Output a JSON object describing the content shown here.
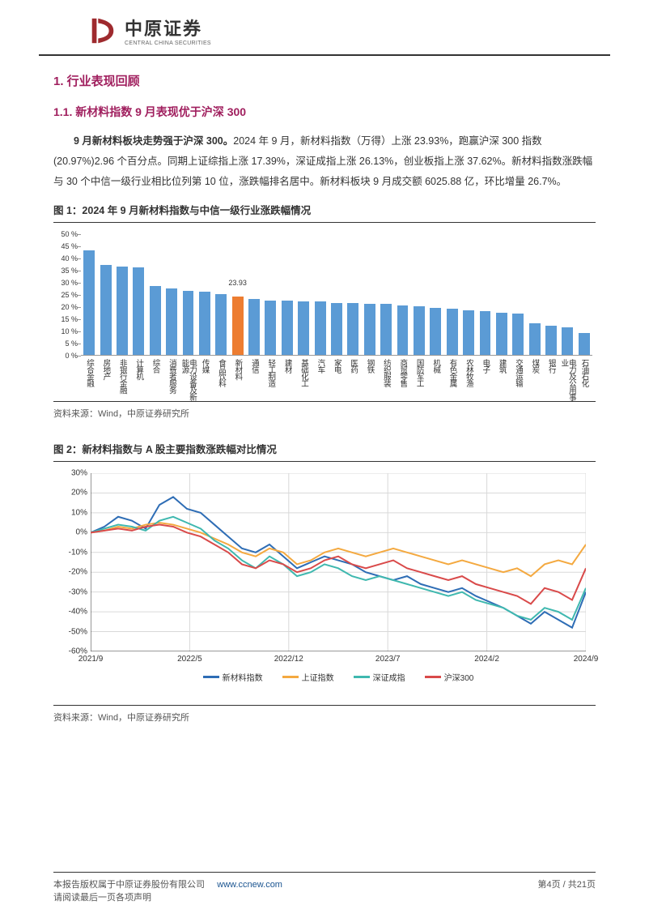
{
  "header": {
    "company_cn": "中原证券",
    "company_en": "CENTRAL CHINA SECURITIES",
    "logo_color": "#9e2a2e"
  },
  "section1": {
    "h1": "1. 行业表现回顾",
    "h2": "1.1. 新材料指数 9 月表现优于沪深 300",
    "body_bold": "9 月新材料板块走势强于沪深 300。",
    "body_rest": "2024 年 9 月，新材料指数（万得）上涨 23.93%，跑赢沪深 300 指数(20.97%)2.96 个百分点。同期上证综指上涨 17.39%，深证成指上涨 26.13%，创业板指上涨 37.62%。新材料指数涨跌幅与 30 个中信一级行业相比位列第 10 位，涨跌幅排名居中。新材料板块 9 月成交额 6025.88 亿，环比增量 26.7%。"
  },
  "fig1": {
    "title": "图 1：2024 年 9 月新材料指数与中信一级行业涨跌幅情况",
    "source": "资料来源：Wind，中原证券研究所",
    "type": "bar",
    "ylim": [
      0,
      50
    ],
    "ytick_step": 5,
    "ylabel_suffix": " %",
    "bar_color": "#5b9bd5",
    "highlight_color": "#ed7d31",
    "highlight_index": 9,
    "highlight_label": "23.93",
    "grid_color": "#e8e8e8",
    "categories": [
      "综合金融",
      "房地产",
      "非银行金融",
      "计算机",
      "综合",
      "消费者服务",
      "电力设备及新能源",
      "传媒",
      "食品饮料",
      "新材料",
      "通信",
      "轻工制造",
      "建材",
      "基础化工",
      "汽车",
      "家电",
      "医药",
      "钢铁",
      "纺织服装",
      "商贸零售",
      "国防军工",
      "机械",
      "有色金属",
      "农林牧渔",
      "电子",
      "建筑",
      "交通运输",
      "煤炭",
      "银行",
      "电力及公用事业",
      "石油石化"
    ],
    "values": [
      43,
      37,
      36.5,
      36,
      28.5,
      27.5,
      26.5,
      26,
      25,
      23.93,
      23,
      22.5,
      22.5,
      22,
      22,
      21.5,
      21.5,
      21,
      21,
      20.5,
      20,
      19.5,
      19,
      18.5,
      18,
      17.5,
      17,
      13,
      12,
      11.5,
      9
    ]
  },
  "fig2": {
    "title": "图 2：新材料指数与 A 股主要指数涨跌幅对比情况",
    "source": "资料来源：Wind，中原证券研究所",
    "type": "line",
    "ylim": [
      -60,
      30
    ],
    "ytick_step": 10,
    "ylabel_suffix": "%",
    "grid_color": "#d9d9d9",
    "x_categories": [
      "2021/9",
      "2022/5",
      "2022/12",
      "2023/7",
      "2024/2",
      "2024/9"
    ],
    "series": [
      {
        "name": "新材料指数",
        "color": "#2e6db5",
        "data": [
          0,
          3,
          8,
          6,
          2,
          14,
          18,
          12,
          10,
          4,
          -2,
          -8,
          -10,
          -6,
          -12,
          -18,
          -15,
          -12,
          -14,
          -16,
          -20,
          -22,
          -24,
          -22,
          -26,
          -28,
          -30,
          -28,
          -32,
          -35,
          -38,
          -42,
          -46,
          -40,
          -44,
          -48,
          -30
        ]
      },
      {
        "name": "上证指数",
        "color": "#f4a940",
        "data": [
          0,
          1,
          3,
          2,
          4,
          5,
          4,
          2,
          0,
          -3,
          -6,
          -10,
          -12,
          -8,
          -10,
          -16,
          -14,
          -10,
          -8,
          -10,
          -12,
          -10,
          -8,
          -10,
          -12,
          -14,
          -16,
          -14,
          -16,
          -18,
          -20,
          -18,
          -22,
          -16,
          -14,
          -16,
          -6
        ]
      },
      {
        "name": "深证成指",
        "color": "#3fb8af",
        "data": [
          0,
          2,
          4,
          3,
          1,
          6,
          8,
          5,
          2,
          -4,
          -8,
          -14,
          -18,
          -12,
          -16,
          -22,
          -20,
          -16,
          -18,
          -22,
          -24,
          -22,
          -24,
          -26,
          -28,
          -30,
          -32,
          -30,
          -34,
          -36,
          -38,
          -42,
          -44,
          -38,
          -40,
          -44,
          -28
        ]
      },
      {
        "name": "沪深300",
        "color": "#d94a4a",
        "data": [
          0,
          1,
          2,
          1,
          3,
          4,
          3,
          0,
          -2,
          -6,
          -10,
          -16,
          -18,
          -14,
          -16,
          -20,
          -18,
          -14,
          -12,
          -16,
          -18,
          -16,
          -14,
          -18,
          -20,
          -22,
          -24,
          -22,
          -26,
          -28,
          -30,
          -32,
          -36,
          -28,
          -30,
          -34,
          -18
        ]
      }
    ]
  },
  "footer": {
    "copyright": "本报告版权属于中原证券股份有限公司",
    "url": "www.ccnew.com",
    "disclaimer": "请阅读最后一页各项声明",
    "page": "第4页 / 共21页"
  }
}
